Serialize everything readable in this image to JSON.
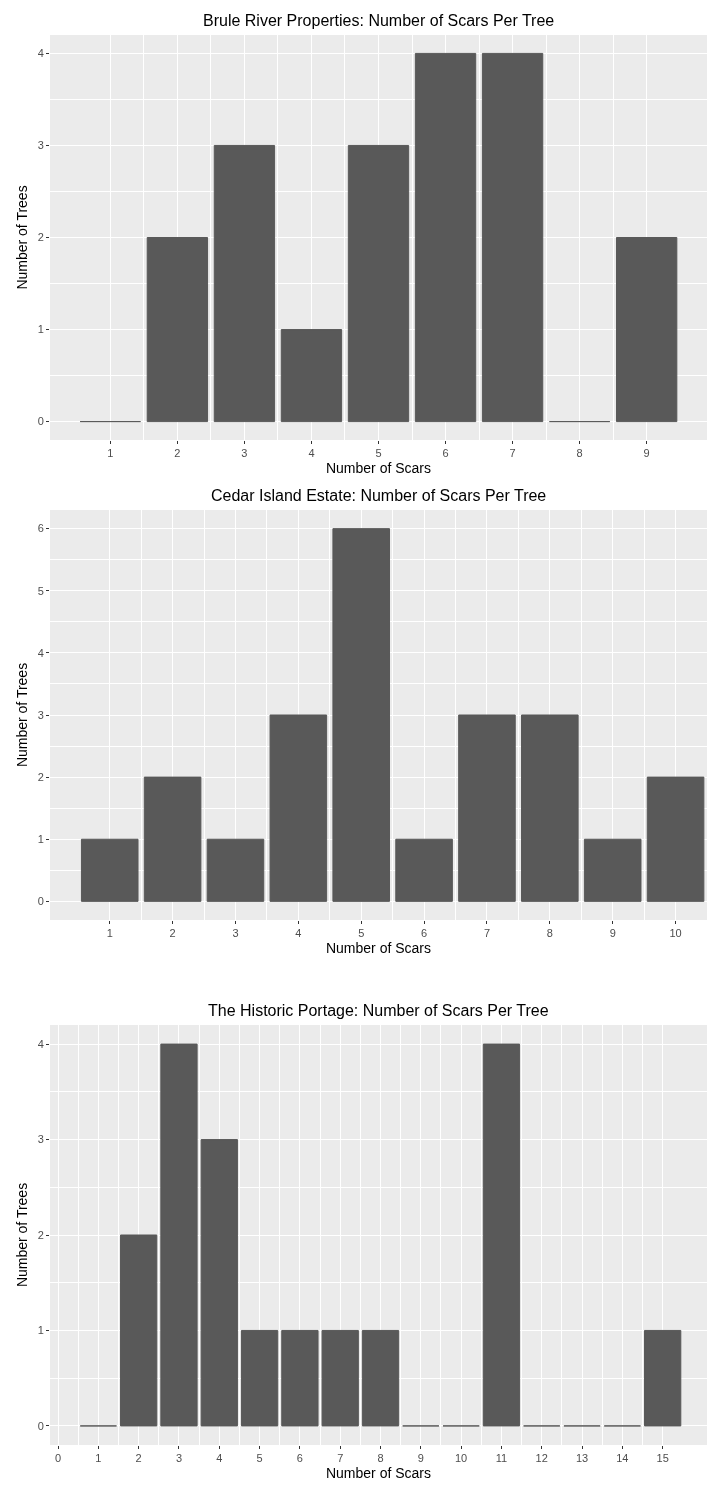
{
  "chart_data": [
    {
      "type": "bar",
      "title": "Brule River Properties: Number of Scars Per Tree",
      "xlabel": "Number of Scars",
      "ylabel": "Number of Trees",
      "x": [
        1,
        2,
        3,
        4,
        5,
        6,
        7,
        8,
        9
      ],
      "values": [
        0,
        2,
        3,
        1,
        3,
        4,
        4,
        0,
        2
      ],
      "color": "#595959",
      "xlim": [
        0.1,
        9.9
      ],
      "xticks": [
        1,
        2,
        3,
        4,
        5,
        6,
        7,
        8,
        9
      ],
      "ylim": [
        -0.2,
        4.2
      ],
      "yticks": [
        0,
        1,
        2,
        3,
        4
      ],
      "grid": true
    },
    {
      "type": "bar",
      "title": "Cedar Island Estate: Number of Scars Per Tree",
      "xlabel": "Number of Scars",
      "ylabel": "Number of Trees",
      "x": [
        1,
        2,
        3,
        4,
        5,
        6,
        7,
        8,
        9,
        10
      ],
      "values": [
        1,
        2,
        1,
        3,
        6,
        1,
        3,
        3,
        1,
        2
      ],
      "color": "#595959",
      "xlim": [
        0.05,
        10.5
      ],
      "xticks": [
        1,
        2,
        3,
        4,
        5,
        6,
        7,
        8,
        9,
        10
      ],
      "ylim": [
        -0.3,
        6.3
      ],
      "yticks": [
        0,
        1,
        2,
        3,
        4,
        5,
        6
      ],
      "grid": true
    },
    {
      "type": "bar",
      "title": "The Historic Portage: Number of Scars Per Tree",
      "xlabel": "Number of Scars",
      "ylabel": "Number of Trees",
      "x": [
        1,
        2,
        3,
        4,
        5,
        6,
        7,
        8,
        9,
        10,
        11,
        12,
        13,
        14,
        15
      ],
      "values": [
        0,
        2,
        4,
        3,
        1,
        1,
        1,
        1,
        0,
        0,
        4,
        0,
        0,
        0,
        1
      ],
      "color": "#595959",
      "xlim": [
        -0.2,
        16.1
      ],
      "xticks": [
        0,
        1,
        2,
        3,
        4,
        5,
        6,
        7,
        8,
        9,
        10,
        11,
        12,
        13,
        14,
        15
      ],
      "ylim": [
        -0.2,
        4.2
      ],
      "yticks": [
        0,
        1,
        2,
        3,
        4
      ],
      "grid": true
    }
  ]
}
